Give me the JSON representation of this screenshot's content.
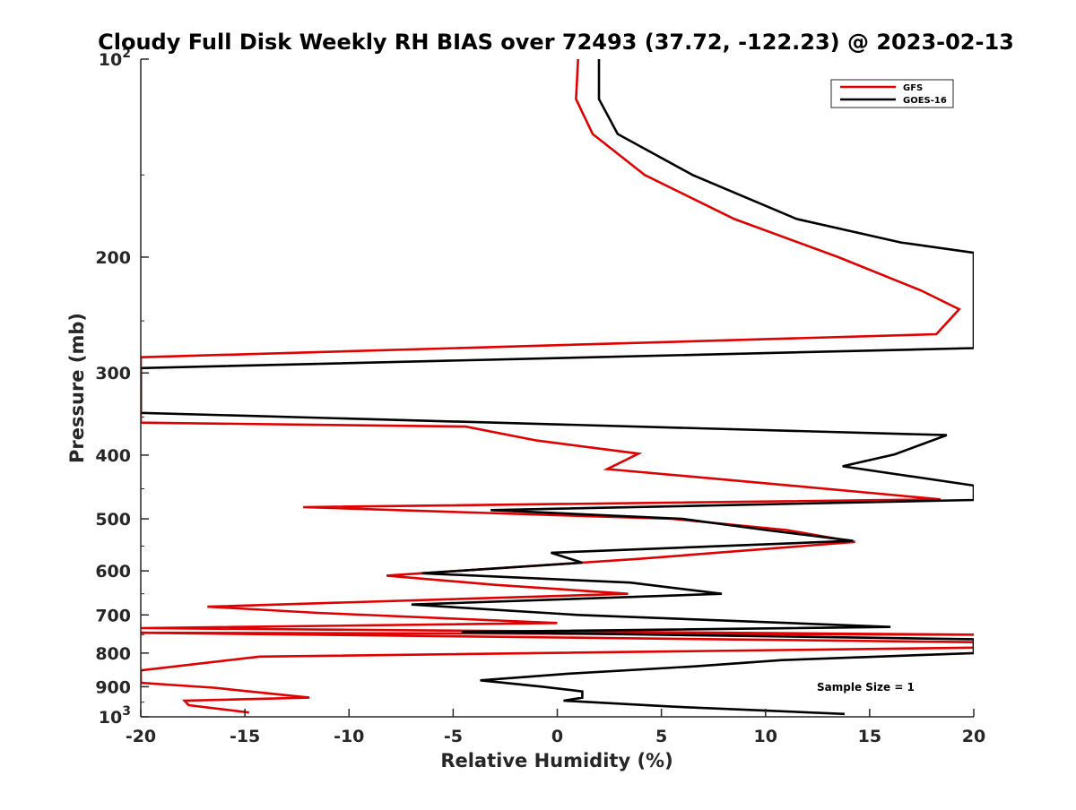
{
  "chart_data": {
    "type": "line",
    "title": "Cloudy Full Disk Weekly RH BIAS over 72493 (37.72, -122.23) @ 2023-02-13",
    "xlabel": "Relative Humidity (%)",
    "ylabel": "Pressure (mb)",
    "xlim": [
      -20,
      20
    ],
    "ylim": [
      100,
      1000
    ],
    "y_scale": "log",
    "y_reversed": true,
    "x_ticks": [
      "-20",
      "-15",
      "-10",
      "-5",
      "0",
      "5",
      "10",
      "15",
      "20"
    ],
    "y_ticks": [
      {
        "value": 100,
        "base": "10",
        "exp": "2"
      },
      {
        "value": 200,
        "label": "200"
      },
      {
        "value": 300,
        "label": "300"
      },
      {
        "value": 400,
        "label": "400"
      },
      {
        "value": 500,
        "label": "500"
      },
      {
        "value": 600,
        "label": "600"
      },
      {
        "value": 700,
        "label": "700"
      },
      {
        "value": 800,
        "label": "800"
      },
      {
        "value": 900,
        "label": "900"
      },
      {
        "value": 1000,
        "base": "10",
        "exp": "3"
      }
    ],
    "grid": false,
    "legend_position": "top-right",
    "annotation": "Sample Size = 1",
    "series": [
      {
        "name": "GFS",
        "color": "#e00000",
        "points": [
          [
            1.0,
            100
          ],
          [
            0.9,
            115
          ],
          [
            1.7,
            130
          ],
          [
            4.2,
            150
          ],
          [
            8.5,
            175
          ],
          [
            13.5,
            200
          ],
          [
            17.5,
            225
          ],
          [
            19.3,
            240
          ],
          [
            18.2,
            262
          ],
          [
            -20,
            284
          ],
          [
            -20,
            357
          ],
          [
            -4.4,
            362
          ],
          [
            -1.0,
            380
          ],
          [
            3.9,
            398
          ],
          [
            2.4,
            420
          ],
          [
            9.5,
            440
          ],
          [
            18.4,
            467
          ],
          [
            -12.2,
            480
          ],
          [
            5.5,
            500
          ],
          [
            11.0,
            520
          ],
          [
            14.3,
            542
          ],
          [
            4.0,
            575
          ],
          [
            -8.2,
            610
          ],
          [
            -3.0,
            630
          ],
          [
            3.4,
            650
          ],
          [
            -16.8,
            680
          ],
          [
            -11.5,
            695
          ],
          [
            0.0,
            720
          ],
          [
            -20,
            733
          ],
          [
            20,
            750
          ],
          [
            -20,
            745
          ],
          [
            20,
            770
          ],
          [
            20,
            785
          ],
          [
            -14.3,
            810
          ],
          [
            -20,
            850
          ],
          [
            -20,
            888
          ],
          [
            -16.5,
            903
          ],
          [
            -11.9,
            935
          ],
          [
            -17.9,
            945
          ],
          [
            -17.7,
            960
          ],
          [
            -14.8,
            985
          ]
        ]
      },
      {
        "name": "GOES-16",
        "color": "#000000",
        "points": [
          [
            2.0,
            100
          ],
          [
            2.0,
            115
          ],
          [
            2.9,
            130
          ],
          [
            6.5,
            150
          ],
          [
            11.5,
            175
          ],
          [
            16.5,
            190
          ],
          [
            20,
            197
          ],
          [
            20,
            275
          ],
          [
            -20,
            295
          ],
          [
            -20,
            345
          ],
          [
            18.7,
            373
          ],
          [
            16.2,
            399
          ],
          [
            13.7,
            416
          ],
          [
            20,
            445
          ],
          [
            20,
            468
          ],
          [
            -3.2,
            485
          ],
          [
            6.0,
            500
          ],
          [
            10.0,
            520
          ],
          [
            14.2,
            540
          ],
          [
            -0.3,
            563
          ],
          [
            1.2,
            583
          ],
          [
            -6.5,
            605
          ],
          [
            3.5,
            625
          ],
          [
            7.9,
            650
          ],
          [
            -7.0,
            675
          ],
          [
            1.0,
            700
          ],
          [
            16.0,
            730
          ],
          [
            -4.6,
            743
          ],
          [
            20,
            762
          ],
          [
            20,
            800
          ],
          [
            10.8,
            820
          ],
          [
            6.6,
            838
          ],
          [
            0.5,
            860
          ],
          [
            -3.7,
            880
          ],
          [
            -0.7,
            900
          ],
          [
            1.2,
            915
          ],
          [
            1.2,
            935
          ],
          [
            0.3,
            945
          ],
          [
            5.5,
            965
          ],
          [
            13.8,
            990
          ]
        ]
      }
    ]
  }
}
